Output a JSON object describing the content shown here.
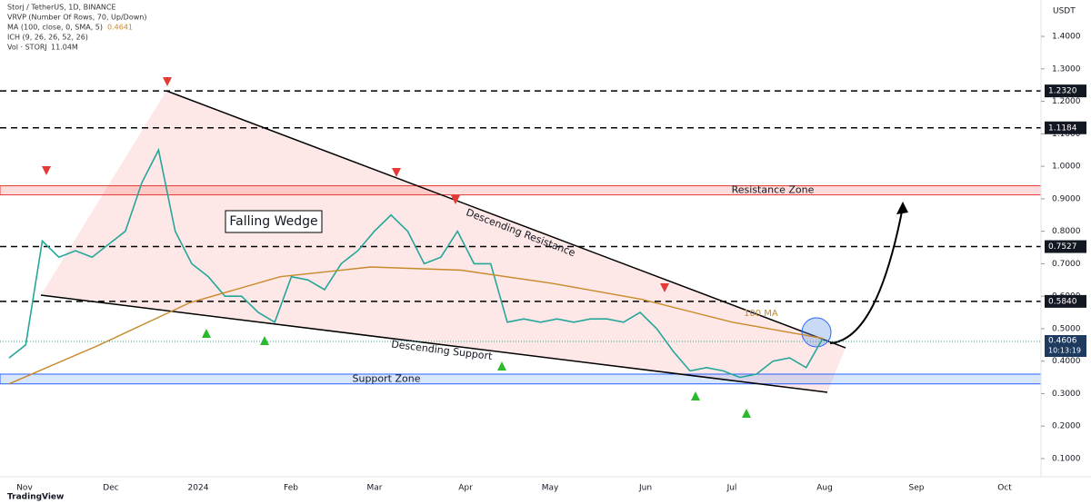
{
  "header": {
    "lines": [
      "Storj / TetherUS, 1D, BINANCE",
      "VRVP (Number Of Rows, 70, Up/Down)",
      "MA (100, close, 0, SMA, 5)",
      "ICH (9, 26, 26, 52, 26)",
      "Vol · STORJ"
    ],
    "ma_value": "0.4641",
    "vol_value": "11.04M"
  },
  "chart_data": {
    "type": "line",
    "currency": "USDT",
    "ylim": [
      0.044,
      1.512
    ],
    "yticks": [
      {
        "value": 1.4,
        "label": "1.4000"
      },
      {
        "value": 1.3,
        "label": "1.3000"
      },
      {
        "value": 1.2,
        "label": "1.2000"
      },
      {
        "value": 1.1,
        "label": "1.1000"
      },
      {
        "value": 1.0,
        "label": "1.0000"
      },
      {
        "value": 0.9,
        "label": "0.9000"
      },
      {
        "value": 0.8,
        "label": "0.8000"
      },
      {
        "value": 0.7,
        "label": "0.7000"
      },
      {
        "value": 0.6,
        "label": "0.6000"
      },
      {
        "value": 0.5,
        "label": "0.5000"
      },
      {
        "value": 0.4,
        "label": "0.4000"
      },
      {
        "value": 0.3,
        "label": "0.3000"
      },
      {
        "value": 0.2,
        "label": "0.2000"
      },
      {
        "value": 0.1,
        "label": "0.1000"
      }
    ],
    "x_labels": [
      "Nov",
      "Dec",
      "2024",
      "Feb",
      "Mar",
      "Apr",
      "May",
      "Jun",
      "Jul",
      "Aug",
      "Sep",
      "Oct"
    ],
    "series": [
      {
        "name": "STORJ/USDT",
        "color": "#26a69a",
        "values": [
          0.41,
          0.45,
          0.77,
          0.72,
          0.74,
          0.72,
          0.76,
          0.8,
          0.95,
          1.05,
          0.8,
          0.7,
          0.66,
          0.6,
          0.6,
          0.55,
          0.52,
          0.66,
          0.65,
          0.62,
          0.7,
          0.74,
          0.8,
          0.85,
          0.8,
          0.7,
          0.72,
          0.8,
          0.7,
          0.7,
          0.52,
          0.53,
          0.52,
          0.53,
          0.52,
          0.53,
          0.53,
          0.52,
          0.55,
          0.5,
          0.43,
          0.37,
          0.38,
          0.37,
          0.35,
          0.36,
          0.4,
          0.41,
          0.38,
          0.47
        ]
      },
      {
        "name": "100 MA",
        "color": "#c8892a",
        "values": [
          0.33,
          0.45,
          0.58,
          0.66,
          0.69,
          0.68,
          0.64,
          0.59,
          0.52,
          0.47
        ]
      }
    ],
    "levels": [
      {
        "value": 1.232,
        "label": "1.2320"
      },
      {
        "value": 1.1184,
        "label": "1.1184"
      },
      {
        "value": 0.7527,
        "label": "0.7527"
      },
      {
        "value": 0.584,
        "label": "0.5840"
      }
    ],
    "last_price": {
      "value": 0.4606,
      "label": "0.4606",
      "countdown": "10:13:19"
    },
    "zones": [
      {
        "name": "Resistance Zone",
        "range": [
          0.912,
          0.94
        ]
      },
      {
        "name": "Support Zone",
        "range": [
          0.33,
          0.36
        ]
      }
    ],
    "annotations": [
      "Falling Wedge",
      "Descending Resistance",
      "Descending Support"
    ],
    "brand": "TradingView"
  }
}
